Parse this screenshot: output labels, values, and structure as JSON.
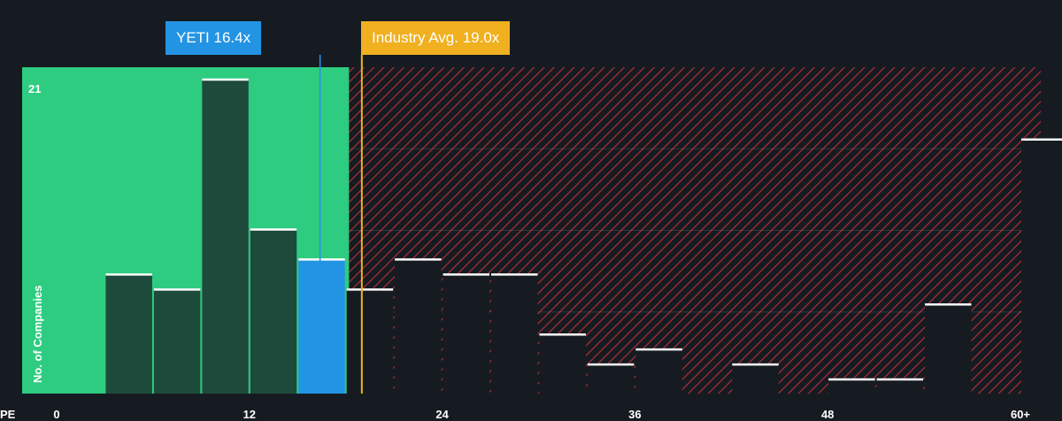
{
  "subject_label": "YETI 16.4x",
  "industry_label": "Industry Avg. 19.0x",
  "chart_data": {
    "type": "bar",
    "x_axis_label": "PE",
    "y_axis_label": "No. of Companies",
    "y_tick_label": "21",
    "y_max_label_value": 21,
    "x_ticks": [
      {
        "value": 0,
        "label": "0"
      },
      {
        "value": 12,
        "label": "12"
      },
      {
        "value": 24,
        "label": "24"
      },
      {
        "value": 36,
        "label": "36"
      },
      {
        "value": 48,
        "label": "48"
      },
      {
        "value": 60,
        "label": "60+"
      }
    ],
    "bin_width": 3,
    "bins": [
      {
        "start": 3,
        "count": 8
      },
      {
        "start": 6,
        "count": 7
      },
      {
        "start": 9,
        "count": 21
      },
      {
        "start": 12,
        "count": 11
      },
      {
        "start": 15,
        "count": 9,
        "highlight": true
      },
      {
        "start": 18,
        "count": 7
      },
      {
        "start": 21,
        "count": 9
      },
      {
        "start": 24,
        "count": 8
      },
      {
        "start": 27,
        "count": 8
      },
      {
        "start": 30,
        "count": 4
      },
      {
        "start": 33,
        "count": 2
      },
      {
        "start": 36,
        "count": 3
      },
      {
        "start": 42,
        "count": 2
      },
      {
        "start": 48,
        "count": 1
      },
      {
        "start": 51,
        "count": 1
      },
      {
        "start": 54,
        "count": 6
      },
      {
        "start": 60,
        "count": 17
      }
    ],
    "subject_value": 16.4,
    "industry_avg": 19.0,
    "colors": {
      "background": "#161b22",
      "good_zone": "#2ecc80",
      "bar_in_good_zone": "#1e4a3c",
      "bar_in_bad_zone": "#161b22",
      "highlight_bar": "#2394e3",
      "hatch": "#c0303a",
      "subject_line": "#2394e3",
      "industry_line": "#f0b020"
    }
  }
}
